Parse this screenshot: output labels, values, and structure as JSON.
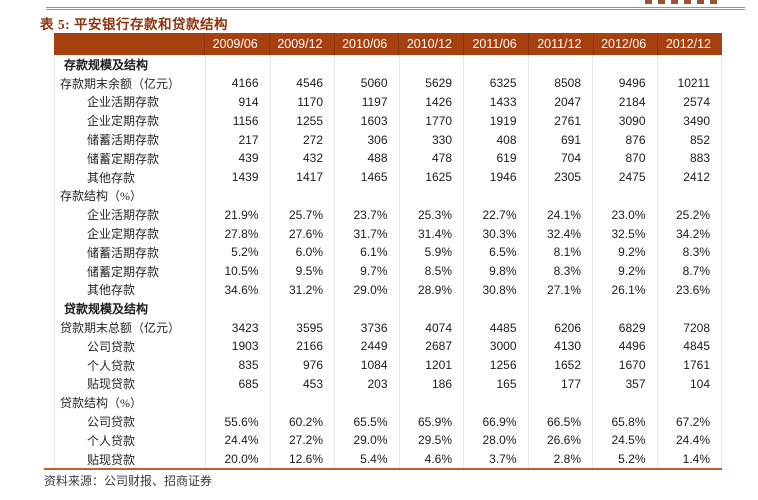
{
  "page": {
    "title": "表 5: 平安银行存款和贷款结构",
    "source": "资料来源：公司财报、招商证券",
    "colors": {
      "header_bg": "#a6400f",
      "title_text": "#8d3410",
      "top_rule": "#c1836b",
      "bottom_rule": "#c75b31"
    }
  },
  "table": {
    "columns": [
      "2009/06",
      "2009/12",
      "2010/06",
      "2010/12",
      "2011/06",
      "2011/12",
      "2012/06",
      "2012/12"
    ],
    "rows": [
      {
        "type": "sec",
        "label": "存款规模及结构",
        "values": [
          "",
          "",
          "",
          "",
          "",
          "",
          "",
          ""
        ]
      },
      {
        "type": "l0",
        "label": "存款期末余额（亿元）",
        "values": [
          "4166",
          "4546",
          "5060",
          "5629",
          "6325",
          "8508",
          "9496",
          "10211"
        ]
      },
      {
        "type": "l1",
        "label": "企业活期存款",
        "values": [
          "914",
          "1170",
          "1197",
          "1426",
          "1433",
          "2047",
          "2184",
          "2574"
        ]
      },
      {
        "type": "l1",
        "label": "企业定期存款",
        "values": [
          "1156",
          "1255",
          "1603",
          "1770",
          "1919",
          "2761",
          "3090",
          "3490"
        ]
      },
      {
        "type": "l1",
        "label": "储蓄活期存款",
        "values": [
          "217",
          "272",
          "306",
          "330",
          "408",
          "691",
          "876",
          "852"
        ]
      },
      {
        "type": "l1",
        "label": "储蓄定期存款",
        "values": [
          "439",
          "432",
          "488",
          "478",
          "619",
          "704",
          "870",
          "883"
        ]
      },
      {
        "type": "l1",
        "label": "其他存款",
        "values": [
          "1439",
          "1417",
          "1465",
          "1625",
          "1946",
          "2305",
          "2475",
          "2412"
        ]
      },
      {
        "type": "l0",
        "label": "存款结构（%）",
        "values": [
          "",
          "",
          "",
          "",
          "",
          "",
          "",
          ""
        ]
      },
      {
        "type": "l1",
        "label": "企业活期存款",
        "values": [
          "21.9%",
          "25.7%",
          "23.7%",
          "25.3%",
          "22.7%",
          "24.1%",
          "23.0%",
          "25.2%"
        ]
      },
      {
        "type": "l1",
        "label": "企业定期存款",
        "values": [
          "27.8%",
          "27.6%",
          "31.7%",
          "31.4%",
          "30.3%",
          "32.4%",
          "32.5%",
          "34.2%"
        ]
      },
      {
        "type": "l1",
        "label": "储蓄活期存款",
        "values": [
          "5.2%",
          "6.0%",
          "6.1%",
          "5.9%",
          "6.5%",
          "8.1%",
          "9.2%",
          "8.3%"
        ]
      },
      {
        "type": "l1",
        "label": "储蓄定期存款",
        "values": [
          "10.5%",
          "9.5%",
          "9.7%",
          "8.5%",
          "9.8%",
          "8.3%",
          "9.2%",
          "8.7%"
        ]
      },
      {
        "type": "l1",
        "label": "其他存款",
        "values": [
          "34.6%",
          "31.2%",
          "29.0%",
          "28.9%",
          "30.8%",
          "27.1%",
          "26.1%",
          "23.6%"
        ]
      },
      {
        "type": "sec",
        "label": "贷款规模及结构",
        "values": [
          "",
          "",
          "",
          "",
          "",
          "",
          "",
          ""
        ]
      },
      {
        "type": "l0",
        "label": "贷款期末总额（亿元）",
        "values": [
          "3423",
          "3595",
          "3736",
          "4074",
          "4485",
          "6206",
          "6829",
          "7208"
        ]
      },
      {
        "type": "l1",
        "label": "公司贷款",
        "values": [
          "1903",
          "2166",
          "2449",
          "2687",
          "3000",
          "4130",
          "4496",
          "4845"
        ]
      },
      {
        "type": "l1",
        "label": "个人贷款",
        "values": [
          "835",
          "976",
          "1084",
          "1201",
          "1256",
          "1652",
          "1670",
          "1761"
        ]
      },
      {
        "type": "l1",
        "label": "贴现贷款",
        "values": [
          "685",
          "453",
          "203",
          "186",
          "165",
          "177",
          "357",
          "104"
        ]
      },
      {
        "type": "l0",
        "label": "贷款结构（%）",
        "values": [
          "",
          "",
          "",
          "",
          "",
          "",
          "",
          ""
        ]
      },
      {
        "type": "l1",
        "label": "公司贷款",
        "values": [
          "55.6%",
          "60.2%",
          "65.5%",
          "65.9%",
          "66.9%",
          "66.5%",
          "65.8%",
          "67.2%"
        ]
      },
      {
        "type": "l1",
        "label": "个人贷款",
        "values": [
          "24.4%",
          "27.2%",
          "29.0%",
          "29.5%",
          "28.0%",
          "26.6%",
          "24.5%",
          "24.4%"
        ]
      },
      {
        "type": "l1",
        "label": "贴现贷款",
        "values": [
          "20.0%",
          "12.6%",
          "5.4%",
          "4.6%",
          "3.7%",
          "2.8%",
          "5.2%",
          "1.4%"
        ]
      }
    ]
  }
}
